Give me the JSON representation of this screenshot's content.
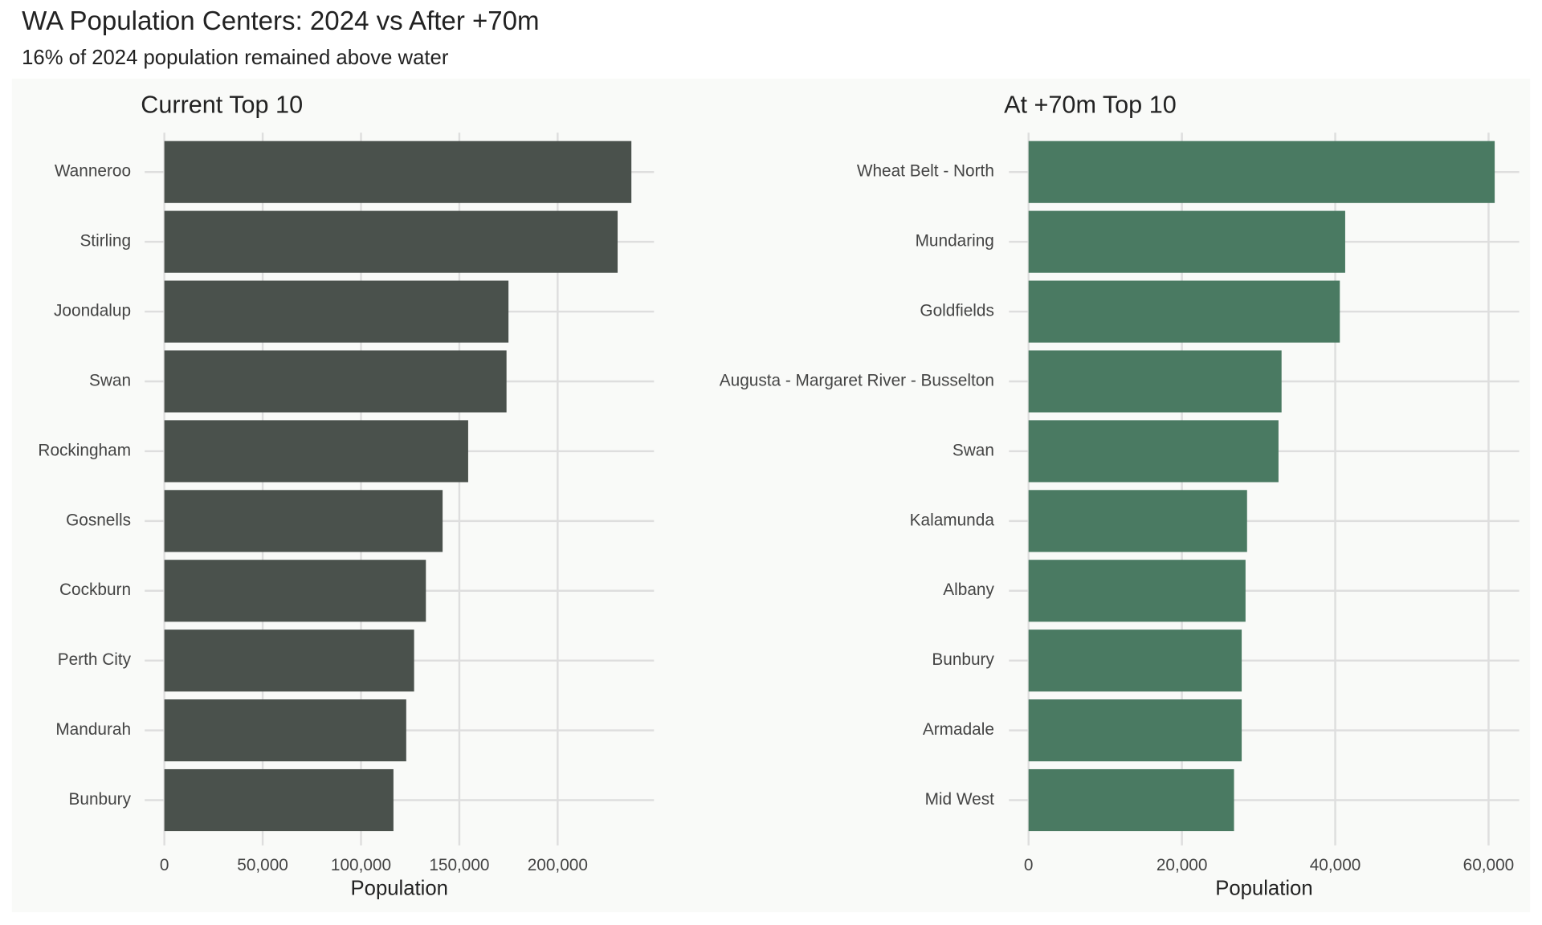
{
  "title": "WA Population Centers: 2024 vs After +70m",
  "subtitle": "16% of 2024 population remained above water",
  "chart_data": [
    {
      "type": "bar",
      "orientation": "horizontal",
      "title": "Current Top 10",
      "categories": [
        "Wanneroo",
        "Stirling",
        "Joondalup",
        "Swan",
        "Rockingham",
        "Gosnells",
        "Cockburn",
        "Perth City",
        "Mandurah",
        "Bunbury"
      ],
      "values": [
        237500,
        230500,
        175000,
        174000,
        154500,
        141500,
        133000,
        127000,
        123000,
        116500
      ],
      "color": "#4a514c",
      "xlim": [
        -10000,
        249000
      ],
      "xticks": [
        0,
        {
          "value": 50000,
          "label": "50,000"
        },
        {
          "value": 100000,
          "label": "100,000"
        },
        {
          "value": 150000,
          "label": "150,000"
        },
        {
          "value": 200000,
          "label": "200,000"
        }
      ],
      "xlabel": "Population",
      "grid": true
    },
    {
      "type": "bar",
      "orientation": "horizontal",
      "title": "At +70m Top 10",
      "categories": [
        "Wheat Belt - North",
        "Mundaring",
        "Goldfields",
        "Augusta - Margaret River - Busselton",
        "Swan",
        "Kalamunda",
        "Albany",
        "Bunbury",
        "Armadale",
        "Mid West"
      ],
      "values": [
        60800,
        41300,
        40600,
        33000,
        32600,
        28500,
        28300,
        27800,
        27800,
        26800
      ],
      "color": "#4a7a62",
      "xlim": [
        -2560,
        64000
      ],
      "xticks": [
        0,
        {
          "value": 20000,
          "label": "20,000"
        },
        {
          "value": 40000,
          "label": "40,000"
        },
        {
          "value": 60000,
          "label": "60,000"
        }
      ],
      "xlabel": "Population",
      "grid": true
    }
  ]
}
